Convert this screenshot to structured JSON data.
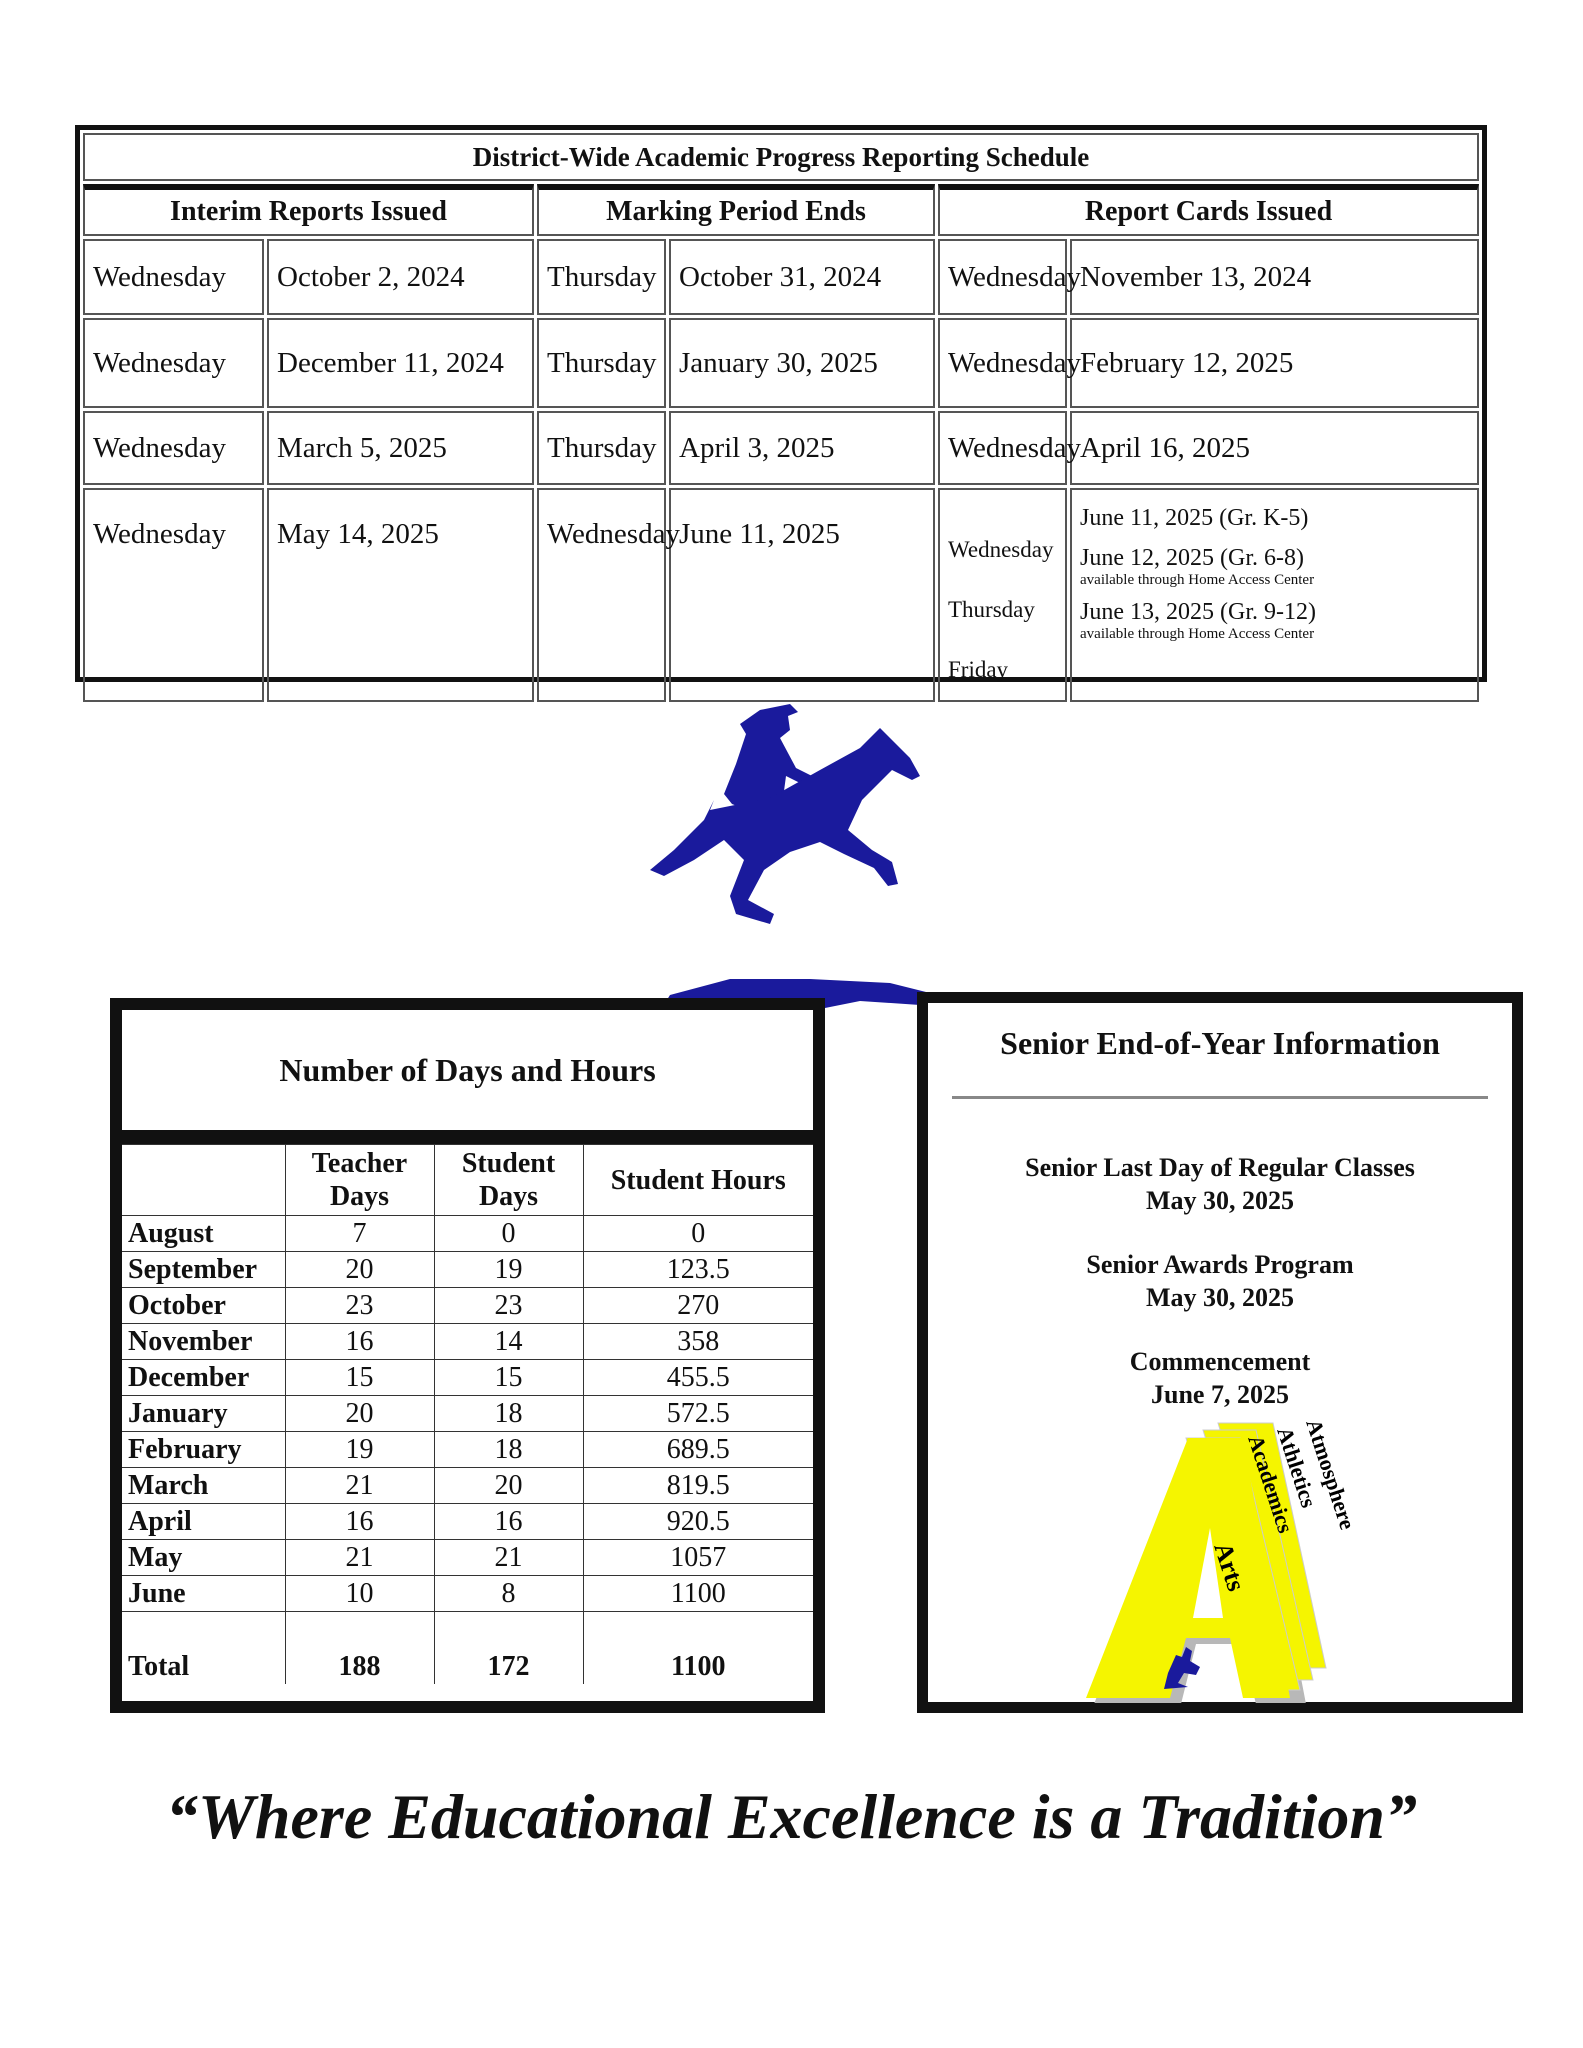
{
  "schedule": {
    "title": "District-Wide Academic Progress Reporting Schedule",
    "headers": [
      "Interim Reports Issued",
      "Marking Period Ends",
      "Report Cards Issued"
    ],
    "rows": [
      {
        "interim_day": "Wednesday",
        "interim_date": "October 2, 2024",
        "mp_day": "Thursday",
        "mp_date": "October 31, 2024",
        "rc_day": "Wednesday",
        "rc_date": "November 13, 2024"
      },
      {
        "interim_day": "Wednesday",
        "interim_date": "December 11, 2024",
        "mp_day": "Thursday",
        "mp_date": "January 30, 2025",
        "rc_day": "Wednesday",
        "rc_date": "February 12, 2025"
      },
      {
        "interim_day": "Wednesday",
        "interim_date": "March 5, 2025",
        "mp_day": "Thursday",
        "mp_date": "April 3, 2025",
        "rc_day": "Wednesday",
        "rc_date": "April 16, 2025"
      }
    ],
    "last_row": {
      "interim_day": "Wednesday",
      "interim_date": "May 14, 2025",
      "mp_day": "Wednesday",
      "mp_date": "June 11, 2025",
      "rc_days": [
        "Wednesday",
        "Thursday",
        "Friday"
      ],
      "rc_dates": [
        {
          "date": "June 11, 2025 (Gr. K-5)",
          "note": ""
        },
        {
          "date": "June 12, 2025 (Gr. 6-8)",
          "note": "available through Home Access Center"
        },
        {
          "date": "June 13, 2025 (Gr. 9-12)",
          "note": "available through Home Access Center"
        }
      ]
    }
  },
  "days_table": {
    "title": "Number of Days and Hours",
    "headers": [
      "",
      "Teacher Days",
      "Student Days",
      "Student Hours"
    ],
    "rows": [
      [
        "August",
        "7",
        "0",
        "0"
      ],
      [
        "September",
        "20",
        "19",
        "123.5"
      ],
      [
        "October",
        "23",
        "23",
        "270"
      ],
      [
        "November",
        "16",
        "14",
        "358"
      ],
      [
        "December",
        "15",
        "15",
        "455.5"
      ],
      [
        "January",
        "20",
        "18",
        "572.5"
      ],
      [
        "February",
        "19",
        "18",
        "689.5"
      ],
      [
        "March",
        "21",
        "20",
        "819.5"
      ],
      [
        "April",
        "16",
        "16",
        "920.5"
      ],
      [
        "May",
        "21",
        "21",
        "1057"
      ],
      [
        "June",
        "10",
        "8",
        "1100"
      ]
    ],
    "total": [
      "Total",
      "188",
      "172",
      "1100"
    ]
  },
  "senior": {
    "title": "Senior End-of-Year Information",
    "events": [
      {
        "name": "Senior Last Day of Regular Classes",
        "date": "May 30, 2025"
      },
      {
        "name": "Senior Awards Program",
        "date": "May 30, 2025"
      },
      {
        "name": "Commencement",
        "date": "June 7, 2025"
      }
    ],
    "logo_words": [
      "Atmosphere",
      "Athletics",
      "Academics",
      "Arts"
    ]
  },
  "quote": "“Where Educational Excellence is a Tradition”",
  "colors": {
    "mascot_blue": "#1a1a9c",
    "logo_yellow": "#f5f500",
    "logo_shadow": "#b8b8b8"
  }
}
